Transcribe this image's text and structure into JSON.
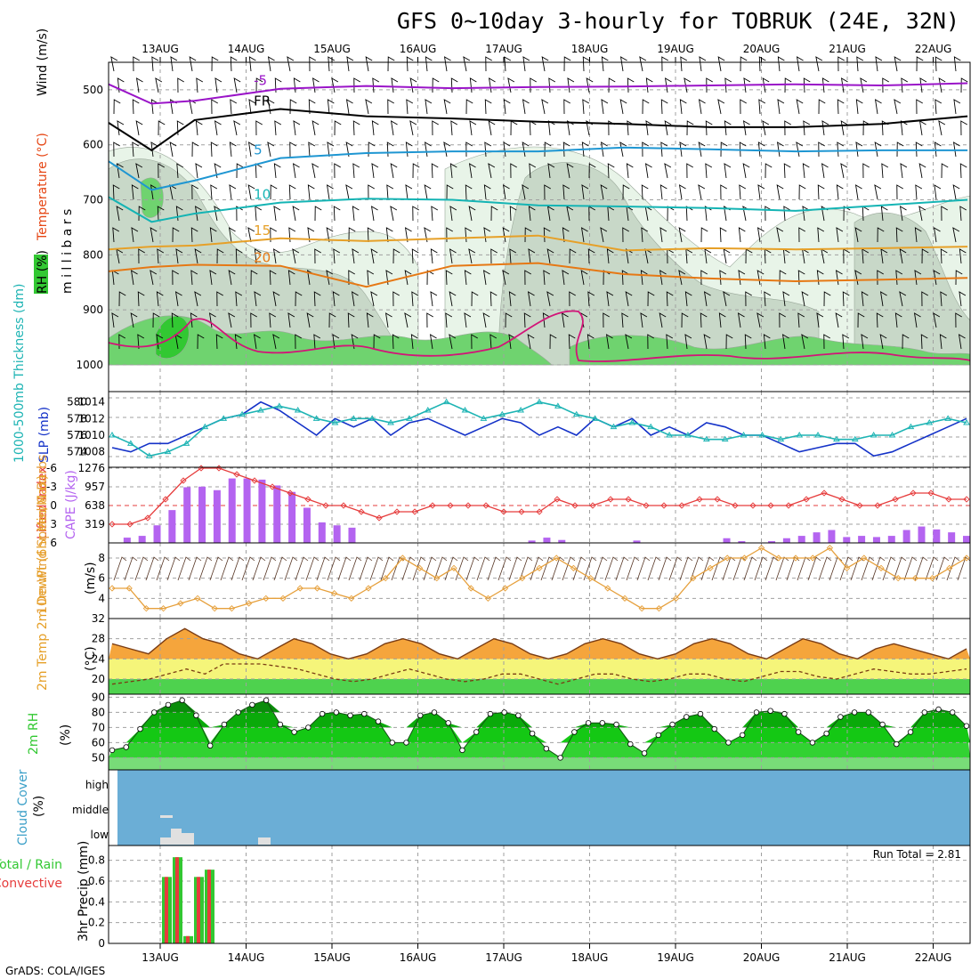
{
  "header": {
    "title": "GFS 0~10day 3-hourly for TOBRUK (24E, 32N)",
    "footer": "GrADS: COLA/IGES"
  },
  "colors": {
    "purple": "#9a14c8",
    "black": "#000000",
    "blue": "#1e96d2",
    "cyan": "#14b4b4",
    "orange": "#e6a028",
    "darkorange": "#e67814",
    "magenta": "#d21478",
    "slp": "#1432c8",
    "thick": "#1eb4b4",
    "li": "#e63c3c",
    "cape": "#b464f0",
    "wind": "#e6a03c",
    "rh_green": "#32c832",
    "cloud": "#6baed6",
    "rain": "#32c832",
    "conv": "#e63c3c"
  },
  "chart_data": [
    {
      "id": "upper_air",
      "type": "contour",
      "ylabel_parts": [
        "RH (%)",
        "Temperature (°C)",
        "Wind (m/s)"
      ],
      "ylabel_sub": "m i l l i b a r s",
      "dates": [
        "13AUG",
        "14AUG",
        "15AUG",
        "16AUG",
        "17AUG",
        "18AUG",
        "19AUG",
        "20AUG",
        "21AUG",
        "22AUG"
      ],
      "y_ticks": [
        500,
        600,
        700,
        800,
        900,
        1000
      ],
      "ylim": [
        450,
        1000
      ],
      "rh_levels": [
        10,
        30,
        50,
        70,
        90
      ],
      "isotherms": [
        {
          "label": "-5",
          "color": "purple",
          "points": [
            [
              0,
              490
            ],
            [
              0.5,
              525
            ],
            [
              1,
              520
            ],
            [
              2,
              498
            ],
            [
              3,
              493
            ],
            [
              4,
              497
            ],
            [
              5,
              495
            ],
            [
              6,
              494
            ],
            [
              7,
              492
            ],
            [
              8,
              490
            ],
            [
              9,
              492
            ],
            [
              10,
              488
            ]
          ]
        },
        {
          "label": "FR",
          "color": "black",
          "points": [
            [
              0,
              560
            ],
            [
              0.5,
              610
            ],
            [
              1,
              555
            ],
            [
              2,
              535
            ],
            [
              3,
              548
            ],
            [
              4,
              552
            ],
            [
              5,
              558
            ],
            [
              6,
              562
            ],
            [
              7,
              568
            ],
            [
              8,
              568
            ],
            [
              9,
              562
            ],
            [
              10,
              548
            ]
          ]
        },
        {
          "label": "5",
          "color": "blue",
          "points": [
            [
              0,
              630
            ],
            [
              0.5,
              682
            ],
            [
              1,
              665
            ],
            [
              2,
              624
            ],
            [
              3,
              615
            ],
            [
              4,
              612
            ],
            [
              5,
              612
            ],
            [
              6,
              605
            ],
            [
              7,
              608
            ],
            [
              8,
              612
            ],
            [
              9,
              610
            ],
            [
              10,
              610
            ]
          ]
        },
        {
          "label": "10",
          "color": "cyan",
          "points": [
            [
              0,
              695
            ],
            [
              0.5,
              740
            ],
            [
              1,
              725
            ],
            [
              2,
              705
            ],
            [
              3,
              698
            ],
            [
              4,
              700
            ],
            [
              5,
              710
            ],
            [
              6,
              712
            ],
            [
              7,
              715
            ],
            [
              8,
              720
            ],
            [
              9,
              710
            ],
            [
              10,
              700
            ]
          ]
        },
        {
          "label": "15",
          "color": "orange",
          "points": [
            [
              0,
              790
            ],
            [
              0.5,
              785
            ],
            [
              1,
              783
            ],
            [
              2,
              770
            ],
            [
              3,
              775
            ],
            [
              4,
              770
            ],
            [
              5,
              765
            ],
            [
              6,
              792
            ],
            [
              7,
              788
            ],
            [
              8,
              790
            ],
            [
              9,
              788
            ],
            [
              10,
              785
            ]
          ]
        },
        {
          "label": "20",
          "color": "darkorange",
          "points": [
            [
              0,
              830
            ],
            [
              0.5,
              822
            ],
            [
              1,
              818
            ],
            [
              2,
              820
            ],
            [
              3,
              858
            ],
            [
              4,
              820
            ],
            [
              5,
              815
            ],
            [
              6,
              835
            ],
            [
              7,
              843
            ],
            [
              8,
              848
            ],
            [
              9,
              845
            ],
            [
              10,
              842
            ]
          ]
        }
      ]
    },
    {
      "id": "slp_thickness",
      "type": "line",
      "ylabel_left": "1000-500mb\nThickness (dm)",
      "ylabel_right": "SLP (mb)",
      "left_ticks": [
        574,
        576,
        578,
        580
      ],
      "right_ticks": [
        1008,
        1010,
        1012,
        1014
      ],
      "series": [
        {
          "name": "SLP (mb)",
          "color": "slp",
          "ylim": [
            1007,
            1014.5
          ],
          "values": [
            1008.5,
            1008,
            1009,
            1009,
            1010,
            1011,
            1012,
            1012.5,
            1014,
            1013,
            1011.5,
            1010,
            1012,
            1011,
            1012,
            1010,
            1011.5,
            1012,
            1011,
            1010,
            1011,
            1012,
            1011.5,
            1010,
            1011,
            1010,
            1012,
            1011,
            1012,
            1010,
            1011,
            1010,
            1011.5,
            1011,
            1010,
            1010,
            1009,
            1008,
            1008.5,
            1009,
            1009,
            1007.5,
            1008,
            1009,
            1010,
            1011,
            1012
          ]
        },
        {
          "name": "1000-500mb Thickness (dm)",
          "color": "thick",
          "ylim": [
            573,
            580.5
          ],
          "values": [
            576,
            575,
            573.5,
            574,
            575,
            577,
            578,
            578.5,
            579,
            579.5,
            579,
            578,
            577.5,
            578,
            578,
            577.5,
            578,
            579,
            580,
            579,
            578,
            578.5,
            579,
            580,
            579.5,
            578.5,
            578,
            577,
            577.5,
            577,
            576,
            576,
            575.5,
            575.5,
            576,
            576,
            575.5,
            576,
            576,
            575.5,
            575.5,
            576,
            576,
            577,
            577.5,
            578,
            577.5
          ]
        }
      ]
    },
    {
      "id": "li_cape",
      "type": "bar+line",
      "ylabel_left": "Lifted Index",
      "ylabel_right": "CAPE (J/kg)",
      "left_ticks": [
        -6,
        -3,
        0,
        3,
        6
      ],
      "right_ticks": [
        319,
        638,
        957,
        1276
      ],
      "li_values": [
        3,
        3,
        2,
        -1,
        -4,
        -6,
        -6,
        -5,
        -4,
        -3,
        -2,
        -1,
        0,
        0,
        1,
        2,
        1,
        1,
        0,
        0,
        0,
        0,
        1,
        1,
        1,
        -1,
        0,
        0,
        -1,
        -1,
        0,
        0,
        0,
        -1,
        -1,
        0,
        0,
        0,
        0,
        -1,
        -2,
        -1,
        0,
        0,
        -1,
        -2,
        -2,
        -1,
        -1
      ],
      "cape_values": [
        0,
        90,
        120,
        300,
        560,
        950,
        960,
        900,
        1100,
        1100,
        1080,
        980,
        870,
        600,
        350,
        300,
        260,
        0,
        0,
        0,
        0,
        0,
        0,
        0,
        0,
        0,
        0,
        0,
        40,
        90,
        50,
        0,
        0,
        0,
        0,
        40,
        0,
        0,
        0,
        0,
        0,
        80,
        30,
        0,
        30,
        80,
        120,
        180,
        220,
        100,
        120,
        100,
        120,
        220,
        280,
        230,
        180,
        120
      ]
    },
    {
      "id": "wind10m",
      "type": "line",
      "ylabel": "10m Wind\nSpeed & Barbs",
      "yunit": "(m/s)",
      "y_ticks": [
        4,
        6,
        8
      ],
      "ylim": [
        2,
        9.5
      ],
      "values": [
        5,
        5,
        3,
        3,
        3.5,
        4,
        3,
        3,
        3.5,
        4,
        4,
        5,
        5,
        4.5,
        4,
        5,
        6,
        8,
        7,
        6,
        7,
        5,
        4,
        5,
        6,
        7,
        8,
        7,
        6,
        5,
        4,
        3,
        3,
        4,
        6,
        7,
        8,
        8,
        9,
        8,
        8,
        8,
        9,
        7,
        8,
        7,
        6,
        6,
        6,
        7,
        8
      ]
    },
    {
      "id": "temp2m",
      "type": "area+line",
      "ylabel": "2m Temp\n2m DewPt\n(6hr Min/Max)",
      "yunit": "(°C)",
      "y_ticks": [
        20,
        24,
        28,
        32
      ],
      "ylim": [
        17,
        32
      ],
      "temp": [
        27,
        26,
        25,
        28,
        30,
        28,
        27,
        25,
        24,
        26,
        28,
        27,
        25,
        24,
        25,
        27,
        28,
        27,
        25,
        24,
        26,
        28,
        27,
        25,
        24,
        25,
        27,
        28,
        27,
        25,
        24,
        25,
        27,
        28,
        27,
        25,
        24,
        26,
        28,
        27,
        25,
        24,
        26,
        27,
        26,
        25,
        24,
        26
      ],
      "dewpt": [
        19,
        19.5,
        20,
        21,
        22,
        21,
        23,
        23,
        23,
        22.5,
        22,
        21,
        20,
        19.5,
        20,
        21,
        22,
        21,
        20,
        19.5,
        20,
        21,
        21,
        20,
        19,
        20,
        21,
        21,
        20,
        19.5,
        20,
        21,
        21,
        20,
        19.5,
        20.5,
        21.5,
        21.5,
        20.5,
        20,
        21,
        22,
        21.5,
        21,
        21,
        21.5,
        22
      ]
    },
    {
      "id": "rh2m",
      "type": "area",
      "ylabel": "2m RH",
      "yunit": "(%)",
      "y_ticks": [
        50,
        60,
        70,
        80,
        90
      ],
      "ylim": [
        42,
        92
      ],
      "values": [
        55,
        57,
        69,
        80,
        85,
        88,
        78,
        58,
        72,
        80,
        85,
        88,
        72,
        67,
        70,
        79,
        80,
        78,
        79,
        74,
        60,
        60,
        78,
        80,
        73,
        55,
        67,
        79,
        80,
        78,
        66,
        56,
        50,
        67,
        73,
        73,
        72,
        59,
        53,
        65,
        72,
        77,
        79,
        69,
        60,
        65,
        80,
        81,
        79,
        67,
        60,
        66,
        77,
        80,
        80,
        72,
        59,
        67,
        80,
        82,
        80,
        71
      ]
    },
    {
      "id": "cloud",
      "type": "heatmap",
      "ylabel": "Cloud Cover",
      "yunit": "(%)",
      "rows": [
        "high",
        "middle",
        "low"
      ]
    },
    {
      "id": "precip",
      "type": "bar",
      "ylabel": "3hr Precip (mm)",
      "legend_left": "Total / Rain",
      "legend_right": "Convective",
      "run_total": "Run Total = 2.81",
      "y_ticks": [
        0,
        0.2,
        0.4,
        0.6,
        0.8
      ],
      "ylim": [
        0,
        0.9
      ],
      "bars": [
        {
          "i": 5,
          "v": 0.64
        },
        {
          "i": 6,
          "v": 0.83
        },
        {
          "i": 7,
          "v": 0.07
        },
        {
          "i": 8,
          "v": 0.64
        },
        {
          "i": 9,
          "v": 0.71
        }
      ]
    }
  ]
}
